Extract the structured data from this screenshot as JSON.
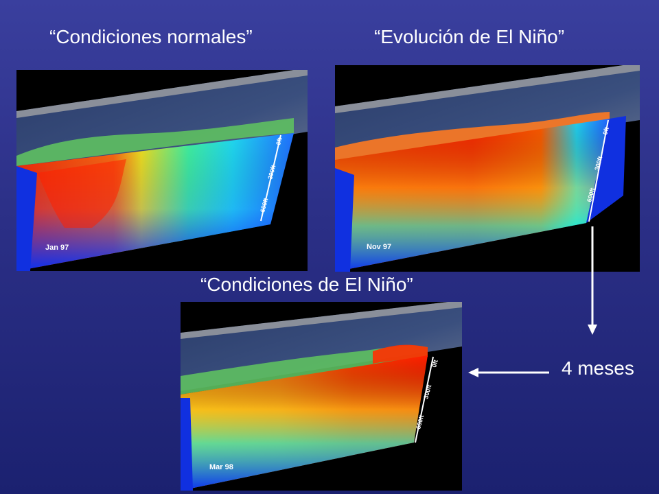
{
  "titles": {
    "normal": "“Condiciones normales”",
    "evolution": "“Evolución de El Niño”",
    "nino": "“Condiciones de El Niño”"
  },
  "panels": {
    "normal": {
      "date": "Jan 97"
    },
    "evolution": {
      "date": "Nov 97"
    },
    "nino": {
      "date": "Mar 98"
    }
  },
  "depth_ticks": [
    "0ft",
    "300ft",
    "600ft"
  ],
  "annotation": {
    "duration": "4 meses"
  },
  "colors": {
    "background": "#2b2f86",
    "ocean_deep": "#1030e0",
    "warm": "#ff2000",
    "mid": "#ffe000",
    "cool": "#20e0e0"
  }
}
